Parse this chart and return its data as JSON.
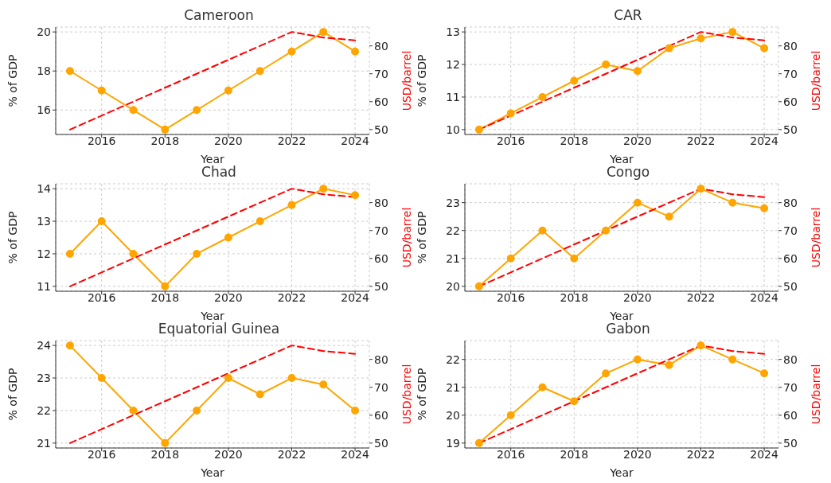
{
  "chart_data": [
    {
      "type": "line",
      "title": "Cameroon",
      "xlabel": "Year",
      "ylabel": "% of GDP",
      "y2label": "USD/barrel",
      "x": [
        2015,
        2016,
        2017,
        2018,
        2019,
        2020,
        2021,
        2022,
        2023,
        2024
      ],
      "xlim": [
        2014.55,
        2024.45
      ],
      "xticks": [
        2016,
        2018,
        2020,
        2022,
        2024
      ],
      "ylim": [
        14.75,
        20.25
      ],
      "yticks": [
        16,
        18,
        20
      ],
      "y2lim": [
        48.25,
        86.75
      ],
      "y2ticks": [
        50,
        60,
        70,
        80
      ],
      "grid": true,
      "series": [
        {
          "color": "#ffa500",
          "marker": "circle",
          "line_style": "solid",
          "values": [
            18,
            17,
            16,
            15,
            16,
            17,
            18,
            19,
            20,
            19
          ]
        },
        {
          "axis": "y2",
          "color": "#ff0000",
          "marker": "none",
          "line_style": "dashed",
          "values": [
            50,
            55,
            60,
            65,
            70,
            75,
            80,
            85,
            83,
            82
          ]
        }
      ]
    },
    {
      "type": "line",
      "title": "CAR",
      "xlabel": "Year",
      "ylabel": "% of GDP",
      "y2label": "USD/barrel",
      "x": [
        2015,
        2016,
        2017,
        2018,
        2019,
        2020,
        2021,
        2022,
        2023,
        2024
      ],
      "xlim": [
        2014.55,
        2024.45
      ],
      "xticks": [
        2016,
        2018,
        2020,
        2022,
        2024
      ],
      "ylim": [
        9.85,
        13.15
      ],
      "yticks": [
        10,
        11,
        12,
        13
      ],
      "y2lim": [
        48.25,
        86.75
      ],
      "y2ticks": [
        50,
        60,
        70,
        80
      ],
      "grid": true,
      "series": [
        {
          "color": "#ffa500",
          "marker": "circle",
          "line_style": "solid",
          "values": [
            10,
            10.5,
            11,
            11.5,
            12,
            11.8,
            12.5,
            12.8,
            13,
            12.5
          ]
        },
        {
          "axis": "y2",
          "color": "#ff0000",
          "marker": "none",
          "line_style": "dashed",
          "values": [
            50,
            55,
            60,
            65,
            70,
            75,
            80,
            85,
            83,
            82
          ]
        }
      ]
    },
    {
      "type": "line",
      "title": "Chad",
      "xlabel": "Year",
      "ylabel": "% of GDP",
      "y2label": "USD/barrel",
      "x": [
        2015,
        2016,
        2017,
        2018,
        2019,
        2020,
        2021,
        2022,
        2023,
        2024
      ],
      "xlim": [
        2014.55,
        2024.45
      ],
      "xticks": [
        2016,
        2018,
        2020,
        2022,
        2024
      ],
      "ylim": [
        10.85,
        14.15
      ],
      "yticks": [
        11,
        12,
        13,
        14
      ],
      "y2lim": [
        48.25,
        86.75
      ],
      "y2ticks": [
        50,
        60,
        70,
        80
      ],
      "grid": true,
      "series": [
        {
          "color": "#ffa500",
          "marker": "circle",
          "line_style": "solid",
          "values": [
            12,
            13,
            12,
            11,
            12,
            12.5,
            13,
            13.5,
            14,
            13.8
          ]
        },
        {
          "axis": "y2",
          "color": "#ff0000",
          "marker": "none",
          "line_style": "dashed",
          "values": [
            50,
            55,
            60,
            65,
            70,
            75,
            80,
            85,
            83,
            82
          ]
        }
      ]
    },
    {
      "type": "line",
      "title": "Congo",
      "xlabel": "Year",
      "ylabel": "% of GDP",
      "y2label": "USD/barrel",
      "x": [
        2015,
        2016,
        2017,
        2018,
        2019,
        2020,
        2021,
        2022,
        2023,
        2024
      ],
      "xlim": [
        2014.55,
        2024.45
      ],
      "xticks": [
        2016,
        2018,
        2020,
        2022,
        2024
      ],
      "ylim": [
        19.825,
        23.675
      ],
      "yticks": [
        20,
        21,
        22,
        23
      ],
      "y2lim": [
        48.25,
        86.75
      ],
      "y2ticks": [
        50,
        60,
        70,
        80
      ],
      "grid": true,
      "series": [
        {
          "color": "#ffa500",
          "marker": "circle",
          "line_style": "solid",
          "values": [
            20,
            21,
            22,
            21,
            22,
            23,
            22.5,
            23.5,
            23,
            22.8
          ]
        },
        {
          "axis": "y2",
          "color": "#ff0000",
          "marker": "none",
          "line_style": "dashed",
          "values": [
            50,
            55,
            60,
            65,
            70,
            75,
            80,
            85,
            83,
            82
          ]
        }
      ]
    },
    {
      "type": "line",
      "title": "Equatorial Guinea",
      "xlabel": "Year",
      "ylabel": "% of GDP",
      "y2label": "USD/barrel",
      "x": [
        2015,
        2016,
        2017,
        2018,
        2019,
        2020,
        2021,
        2022,
        2023,
        2024
      ],
      "xlim": [
        2014.55,
        2024.45
      ],
      "xticks": [
        2016,
        2018,
        2020,
        2022,
        2024
      ],
      "ylim": [
        20.85,
        24.15
      ],
      "yticks": [
        21,
        22,
        23,
        24
      ],
      "y2lim": [
        48.25,
        86.75
      ],
      "y2ticks": [
        50,
        60,
        70,
        80
      ],
      "grid": true,
      "series": [
        {
          "color": "#ffa500",
          "marker": "circle",
          "line_style": "solid",
          "values": [
            24,
            23,
            22,
            21,
            22,
            23,
            22.5,
            23,
            22.8,
            22
          ]
        },
        {
          "axis": "y2",
          "color": "#ff0000",
          "marker": "none",
          "line_style": "dashed",
          "values": [
            50,
            55,
            60,
            65,
            70,
            75,
            80,
            85,
            83,
            82
          ]
        }
      ]
    },
    {
      "type": "line",
      "title": "Gabon",
      "xlabel": "Year",
      "ylabel": "% of GDP",
      "y2label": "USD/barrel",
      "x": [
        2015,
        2016,
        2017,
        2018,
        2019,
        2020,
        2021,
        2022,
        2023,
        2024
      ],
      "xlim": [
        2014.55,
        2024.45
      ],
      "xticks": [
        2016,
        2018,
        2020,
        2022,
        2024
      ],
      "ylim": [
        18.825,
        22.675
      ],
      "yticks": [
        19,
        20,
        21,
        22
      ],
      "y2lim": [
        48.25,
        86.75
      ],
      "y2ticks": [
        50,
        60,
        70,
        80
      ],
      "grid": true,
      "series": [
        {
          "color": "#ffa500",
          "marker": "circle",
          "line_style": "solid",
          "values": [
            19,
            20,
            21,
            20.5,
            21.5,
            22,
            21.8,
            22.5,
            22,
            21.5
          ]
        },
        {
          "axis": "y2",
          "color": "#ff0000",
          "marker": "none",
          "line_style": "dashed",
          "values": [
            50,
            55,
            60,
            65,
            70,
            75,
            80,
            85,
            83,
            82
          ]
        }
      ]
    }
  ]
}
